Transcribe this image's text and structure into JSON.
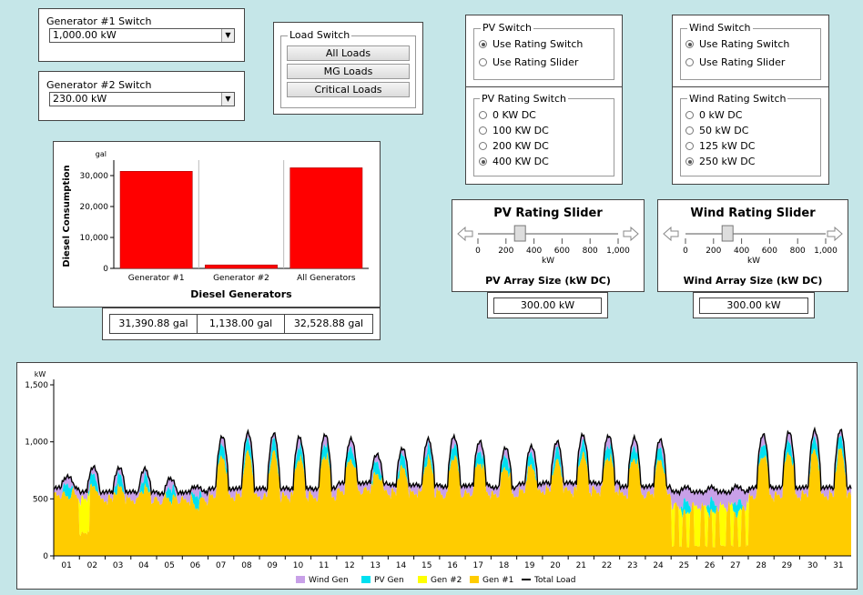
{
  "gen1": {
    "title": "Generator #1 Switch",
    "value": "1,000.00 kW"
  },
  "gen2": {
    "title": "Generator #2 Switch",
    "value": "230.00 kW"
  },
  "load": {
    "title": "Load Switch",
    "buttons": [
      "All Loads",
      "MG Loads",
      "Critical Loads"
    ]
  },
  "pv_switch": {
    "title": "PV Switch",
    "options": [
      "Use Rating Switch",
      "Use Rating Slider"
    ],
    "selected": 0
  },
  "pv_rating": {
    "title": "PV Rating Switch",
    "options": [
      "0 KW DC",
      "100 KW DC",
      "200 KW DC",
      "400 KW DC"
    ],
    "selected": 3
  },
  "wind_switch": {
    "title": "Wind Switch",
    "options": [
      "Use Rating Switch",
      "Use Rating Slider"
    ],
    "selected": 0
  },
  "wind_rating": {
    "title": "Wind Rating Switch",
    "options": [
      "0 kW DC",
      "50 kW DC",
      "125 kW DC",
      "250 kW DC"
    ],
    "selected": 3
  },
  "pv_slider": {
    "title": "PV Rating Slider",
    "ticks": [
      "0",
      "200",
      "400",
      "600",
      "800",
      "1,000"
    ],
    "unit": "kW",
    "caption": "PV Array Size (kW DC)",
    "value": 300,
    "display": "300.00 kW"
  },
  "wind_slider": {
    "title": "Wind Rating Slider",
    "ticks": [
      "0",
      "200",
      "400",
      "600",
      "800",
      "1,000"
    ],
    "unit": "kW",
    "caption": "Wind Array Size (kW DC)",
    "value": 300,
    "display": "300.00 kW"
  },
  "diesel_totals": [
    "31,390.88 gal",
    "1,138.00 gal",
    "32,528.88 gal"
  ],
  "chart_data": [
    {
      "type": "bar",
      "categories": [
        "Generator #1",
        "Generator #2",
        "All Generators"
      ],
      "values": [
        31390.88,
        1138.0,
        32528.88
      ],
      "xlabel": "Diesel Generators",
      "ylabel": "Diesel Consumption",
      "yunit": "gal",
      "yticks": [
        "0",
        "10,000",
        "20,000",
        "30,000"
      ],
      "ylim": [
        0,
        35000
      ],
      "color": "#ff0000"
    },
    {
      "type": "area",
      "yunit": "kW",
      "ylim": [
        0,
        1500
      ],
      "yticks": [
        "0",
        "500",
        "1,000",
        "1,500"
      ],
      "xticks": [
        "01",
        "02",
        "03",
        "04",
        "05",
        "06",
        "07",
        "08",
        "09",
        "10",
        "11",
        "12",
        "13",
        "14",
        "15",
        "16",
        "17",
        "18",
        "19",
        "20",
        "21",
        "22",
        "23",
        "24",
        "25",
        "26",
        "27",
        "28",
        "29",
        "30",
        "31"
      ],
      "series": [
        {
          "name": "Wind Gen",
          "color": "#c8a0e8"
        },
        {
          "name": "PV Gen",
          "color": "#00e0f0"
        },
        {
          "name": "Gen #2",
          "color": "#ffff00"
        },
        {
          "name": "Gen #1",
          "color": "#ffcc00"
        },
        {
          "name": "Total Load",
          "color": "#000000"
        }
      ],
      "daily_peak_load": [
        700,
        780,
        770,
        760,
        680,
        610,
        1050,
        1080,
        1070,
        1040,
        1070,
        1030,
        890,
        940,
        1020,
        1050,
        1010,
        950,
        960,
        1000,
        1060,
        1060,
        1040,
        1020,
        600,
        600,
        610,
        1070,
        1090,
        1100,
        1100
      ],
      "daily_base_load": [
        600,
        560,
        560,
        560,
        550,
        560,
        590,
        590,
        590,
        590,
        590,
        640,
        640,
        620,
        620,
        610,
        620,
        600,
        630,
        640,
        640,
        640,
        610,
        610,
        560,
        560,
        560,
        600,
        600,
        600,
        600
      ]
    }
  ]
}
